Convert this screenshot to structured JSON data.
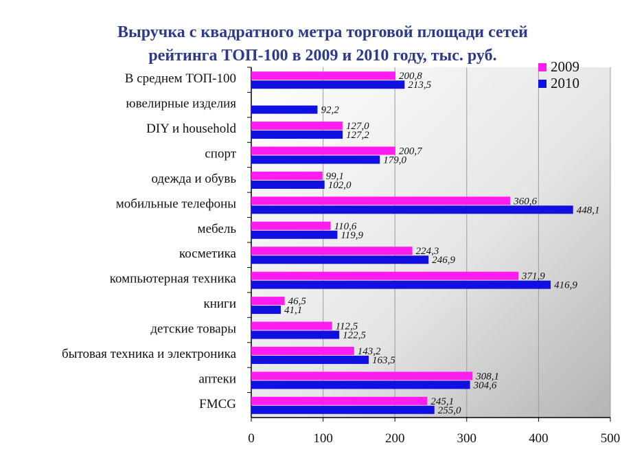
{
  "chart_data": {
    "type": "bar",
    "orientation": "horizontal",
    "title_lines": [
      "Выручка с квадратного метра торговой площади сетей",
      "рейтинга ТОП-100 в 2009 и 2010 году, тыс. руб."
    ],
    "categories": [
      "В среднем ТОП-100",
      "ювелирные изделия",
      "DIY и household",
      "спорт",
      "одежда и обувь",
      "мобильные телефоны",
      "мебель",
      "косметика",
      "компьютерная техника",
      "книги",
      "детские товары",
      "бытовая техника и электроника",
      "аптеки",
      "FMCG"
    ],
    "series": [
      {
        "name": "2009",
        "color": "#ff1cf0",
        "values": [
          200.8,
          null,
          127.0,
          200.7,
          99.1,
          360.6,
          110.6,
          224.3,
          371.9,
          46.5,
          112.5,
          143.2,
          308.1,
          245.1
        ],
        "labels": [
          "200,8",
          "",
          "127,0",
          "200,7",
          "99,1",
          "360,6",
          "110,6",
          "224,3",
          "371,9",
          "46,5",
          "112,5",
          "143,2",
          "308,1",
          "245,1"
        ]
      },
      {
        "name": "2010",
        "color": "#1010e0",
        "values": [
          213.5,
          92.2,
          127.2,
          179.0,
          102.0,
          448.1,
          119.9,
          246.9,
          416.9,
          41.1,
          122.5,
          163.5,
          304.6,
          255.0
        ],
        "labels": [
          "213,5",
          "92,2",
          "127,2",
          "179,0",
          "102,0",
          "448,1",
          "119,9",
          "246,9",
          "416,9",
          "41,1",
          "122,5",
          "163,5",
          "304,6",
          "255,0"
        ]
      }
    ],
    "x_ticks": [
      "0",
      "100",
      "200",
      "300",
      "400",
      "500"
    ],
    "xlim": [
      0,
      500
    ],
    "grid": true,
    "legend_position": "top-right"
  }
}
